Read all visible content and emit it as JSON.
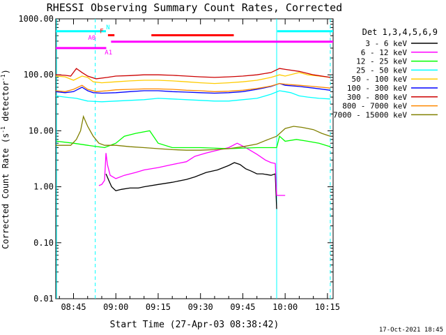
{
  "chart_data": {
    "type": "line",
    "title": "RHESSI Observing Summary Count Rates, Corrected",
    "xlabel": "Start Time (27-Apr-03 08:38:42)",
    "ylabel": "Corrected Count Rate (s",
    "ylabel_sup": "-1",
    "ylabel_tail": " detector",
    "ylabel_sup2": "-1",
    "ylabel_end": ")",
    "y_scale": "log",
    "ylim": [
      0.01,
      1000
    ],
    "xlim_min": [
      38.7,
      137
    ],
    "y_ticks": [
      {
        "v": 1000,
        "label": "1000.00"
      },
      {
        "v": 100,
        "label": "100.00"
      },
      {
        "v": 10,
        "label": "10.00"
      },
      {
        "v": 1,
        "label": "1.00"
      },
      {
        "v": 0.1,
        "label": "0.10"
      },
      {
        "v": 0.01,
        "label": "0.01"
      }
    ],
    "x_ticks": [
      {
        "min": 45,
        "label": "08:45"
      },
      {
        "min": 60,
        "label": "09:00"
      },
      {
        "min": 75,
        "label": "09:15"
      },
      {
        "min": 90,
        "label": "09:30"
      },
      {
        "min": 105,
        "label": "09:45"
      },
      {
        "min": 120,
        "label": "10:00"
      },
      {
        "min": 135,
        "label": "10:15"
      }
    ],
    "legend_title": "Det 1,3,4,5,6,9",
    "legend_position": "top-right",
    "series": [
      {
        "name": "3 - 6 keV",
        "color": "#000000",
        "points": [
          [
            56.5,
            1.7
          ],
          [
            57.5,
            1.3
          ],
          [
            58.5,
            1.0
          ],
          [
            60,
            0.85
          ],
          [
            62,
            0.9
          ],
          [
            65,
            0.95
          ],
          [
            68,
            0.95
          ],
          [
            70,
            1.0
          ],
          [
            75,
            1.1
          ],
          [
            80,
            1.2
          ],
          [
            85,
            1.35
          ],
          [
            88,
            1.5
          ],
          [
            92,
            1.8
          ],
          [
            96,
            2.0
          ],
          [
            100,
            2.4
          ],
          [
            102,
            2.7
          ],
          [
            104,
            2.5
          ],
          [
            106,
            2.1
          ],
          [
            108,
            1.9
          ],
          [
            110,
            1.7
          ],
          [
            112,
            1.7
          ],
          [
            115,
            1.6
          ],
          [
            116.5,
            1.7
          ],
          [
            117,
            0.4
          ]
        ]
      },
      {
        "name": "6 - 12 keV",
        "color": "#ff00ff",
        "points": [
          [
            54,
            1.05
          ],
          [
            55,
            1.1
          ],
          [
            56,
            1.3
          ],
          [
            56.5,
            4.0
          ],
          [
            57,
            2.5
          ],
          [
            58,
            1.6
          ],
          [
            60,
            1.4
          ],
          [
            63,
            1.6
          ],
          [
            67,
            1.8
          ],
          [
            70,
            2.0
          ],
          [
            75,
            2.2
          ],
          [
            80,
            2.5
          ],
          [
            85,
            2.8
          ],
          [
            88,
            3.5
          ],
          [
            92,
            4.0
          ],
          [
            96,
            4.5
          ],
          [
            100,
            5.0
          ],
          [
            103,
            6.0
          ],
          [
            106,
            5.0
          ],
          [
            110,
            3.8
          ],
          [
            113,
            3.0
          ],
          [
            115,
            2.7
          ],
          [
            116.5,
            2.6
          ],
          [
            117,
            0.7
          ],
          [
            120,
            0.7
          ]
        ]
      },
      {
        "name": "12 - 25 keV",
        "color": "#00ff00",
        "points": [
          [
            39,
            6.5
          ],
          [
            45,
            6.0
          ],
          [
            50,
            5.5
          ],
          [
            56,
            5.0
          ],
          [
            60,
            6.0
          ],
          [
            63,
            8.0
          ],
          [
            67,
            9.0
          ],
          [
            72,
            10.0
          ],
          [
            75,
            6.0
          ],
          [
            80,
            5.0
          ],
          [
            90,
            5.0
          ],
          [
            100,
            4.8
          ],
          [
            110,
            5.0
          ],
          [
            117,
            5.0
          ],
          [
            118,
            8.0
          ],
          [
            120,
            6.5
          ],
          [
            124,
            7.0
          ],
          [
            128,
            6.5
          ],
          [
            132,
            6.0
          ],
          [
            136,
            5.2
          ]
        ]
      },
      {
        "name": "25 - 50 keV",
        "color": "#00ffff",
        "points": [
          [
            38.7,
            42
          ],
          [
            42,
            40
          ],
          [
            46,
            38
          ],
          [
            50,
            34
          ],
          [
            55,
            33
          ],
          [
            60,
            34
          ],
          [
            65,
            35
          ],
          [
            70,
            36
          ],
          [
            75,
            38
          ],
          [
            80,
            37
          ],
          [
            85,
            36
          ],
          [
            90,
            35
          ],
          [
            95,
            34
          ],
          [
            100,
            34
          ],
          [
            105,
            36
          ],
          [
            110,
            38
          ],
          [
            115,
            45
          ],
          [
            118,
            52
          ],
          [
            120,
            50
          ],
          [
            122,
            48
          ],
          [
            125,
            42
          ],
          [
            128,
            40
          ],
          [
            132,
            38
          ],
          [
            136,
            37
          ]
        ]
      },
      {
        "name": "50 - 100 keV",
        "color": "#ffcc00",
        "points": [
          [
            38.7,
            95
          ],
          [
            42,
            92
          ],
          [
            45,
            80
          ],
          [
            48,
            95
          ],
          [
            50,
            90
          ],
          [
            52,
            75
          ],
          [
            55,
            72
          ],
          [
            60,
            75
          ],
          [
            65,
            78
          ],
          [
            70,
            80
          ],
          [
            75,
            80
          ],
          [
            80,
            78
          ],
          [
            85,
            75
          ],
          [
            90,
            72
          ],
          [
            95,
            70
          ],
          [
            100,
            72
          ],
          [
            105,
            75
          ],
          [
            110,
            80
          ],
          [
            115,
            90
          ],
          [
            118,
            100
          ],
          [
            120,
            95
          ],
          [
            125,
            110
          ],
          [
            128,
            100
          ],
          [
            132,
            95
          ],
          [
            136,
            90
          ]
        ]
      },
      {
        "name": "100 - 300 keV",
        "color": "#0000ff",
        "points": [
          [
            38.7,
            50
          ],
          [
            42,
            48
          ],
          [
            45,
            50
          ],
          [
            48,
            60
          ],
          [
            50,
            52
          ],
          [
            52,
            48
          ],
          [
            55,
            47
          ],
          [
            60,
            48
          ],
          [
            65,
            50
          ],
          [
            70,
            52
          ],
          [
            75,
            52
          ],
          [
            80,
            50
          ],
          [
            85,
            49
          ],
          [
            90,
            48
          ],
          [
            95,
            47
          ],
          [
            100,
            48
          ],
          [
            105,
            50
          ],
          [
            110,
            55
          ],
          [
            115,
            62
          ],
          [
            118,
            70
          ],
          [
            120,
            65
          ],
          [
            125,
            62
          ],
          [
            130,
            58
          ],
          [
            136,
            53
          ]
        ]
      },
      {
        "name": "300 - 800 keV",
        "color": "#cc0000",
        "points": [
          [
            38.7,
            100
          ],
          [
            42,
            98
          ],
          [
            44,
            95
          ],
          [
            46,
            130
          ],
          [
            48,
            110
          ],
          [
            50,
            95
          ],
          [
            53,
            85
          ],
          [
            57,
            90
          ],
          [
            60,
            95
          ],
          [
            65,
            97
          ],
          [
            70,
            100
          ],
          [
            75,
            100
          ],
          [
            80,
            98
          ],
          [
            85,
            95
          ],
          [
            90,
            92
          ],
          [
            95,
            90
          ],
          [
            100,
            92
          ],
          [
            105,
            95
          ],
          [
            110,
            100
          ],
          [
            115,
            110
          ],
          [
            118,
            130
          ],
          [
            120,
            125
          ],
          [
            125,
            115
          ],
          [
            130,
            100
          ],
          [
            136,
            90
          ]
        ]
      },
      {
        "name": "800 - 7000 keV",
        "color": "#ff8800",
        "points": [
          [
            38.7,
            52
          ],
          [
            42,
            50
          ],
          [
            45,
            55
          ],
          [
            48,
            65
          ],
          [
            50,
            55
          ],
          [
            53,
            50
          ],
          [
            57,
            52
          ],
          [
            60,
            54
          ],
          [
            65,
            55
          ],
          [
            70,
            56
          ],
          [
            75,
            56
          ],
          [
            80,
            55
          ],
          [
            85,
            53
          ],
          [
            90,
            52
          ],
          [
            95,
            50
          ],
          [
            100,
            51
          ],
          [
            105,
            53
          ],
          [
            110,
            57
          ],
          [
            115,
            63
          ],
          [
            118,
            70
          ],
          [
            120,
            68
          ],
          [
            125,
            65
          ],
          [
            130,
            62
          ],
          [
            136,
            58
          ]
        ]
      },
      {
        "name": "7000 - 15000 keV",
        "color": "#808000",
        "points": [
          [
            38.7,
            5.5
          ],
          [
            44,
            5.5
          ],
          [
            46,
            7.0
          ],
          [
            47.5,
            10.0
          ],
          [
            48.5,
            18.0
          ],
          [
            50,
            12.0
          ],
          [
            52,
            8.0
          ],
          [
            54,
            6.0
          ],
          [
            56,
            5.5
          ],
          [
            60,
            5.5
          ],
          [
            65,
            5.2
          ],
          [
            70,
            5.0
          ],
          [
            75,
            4.8
          ],
          [
            80,
            4.6
          ],
          [
            85,
            4.5
          ],
          [
            90,
            4.5
          ],
          [
            95,
            4.6
          ],
          [
            100,
            4.8
          ],
          [
            105,
            5.2
          ],
          [
            110,
            5.8
          ],
          [
            114,
            7.0
          ],
          [
            117,
            8.0
          ],
          [
            120,
            11.0
          ],
          [
            123,
            12.0
          ],
          [
            126,
            11.5
          ],
          [
            130,
            10.5
          ],
          [
            133,
            9.0
          ],
          [
            136,
            8.0
          ]
        ]
      }
    ],
    "flag_bars": [
      {
        "label": "",
        "color": "#00ffff",
        "y": 600,
        "segments": [
          [
            38.7,
            56.5
          ],
          [
            117.2,
            137
          ]
        ]
      },
      {
        "label": "N",
        "color": "#00ffff",
        "label_min": 57.2,
        "y": 600,
        "segments": []
      },
      {
        "label": "F",
        "color": "#ff0000",
        "label_min": 55.0,
        "y": 510,
        "segments": [
          [
            57.2,
            59.5
          ],
          [
            72.6,
            101.8
          ]
        ]
      },
      {
        "label": "A0",
        "color": "#ff00ff",
        "label_min": 51.5,
        "y": 390,
        "segments": [
          [
            58.3,
            137
          ]
        ]
      },
      {
        "label": "A1",
        "color": "#ff00ff",
        "label_min": 57.4,
        "y": 300,
        "segments": [
          [
            38.7,
            56.6
          ]
        ]
      }
    ],
    "vertical_lines": [
      {
        "min": 39.0,
        "color": "#00ffff",
        "style": "solid"
      },
      {
        "min": 52.7,
        "color": "#00ffff",
        "style": "dashed"
      },
      {
        "min": 117.0,
        "color": "#00ffff",
        "style": "solid"
      },
      {
        "min": 136.0,
        "color": "#00ffff",
        "style": "dashed"
      }
    ]
  },
  "footer": {
    "timestamp": "17-Oct-2021 18:45"
  }
}
